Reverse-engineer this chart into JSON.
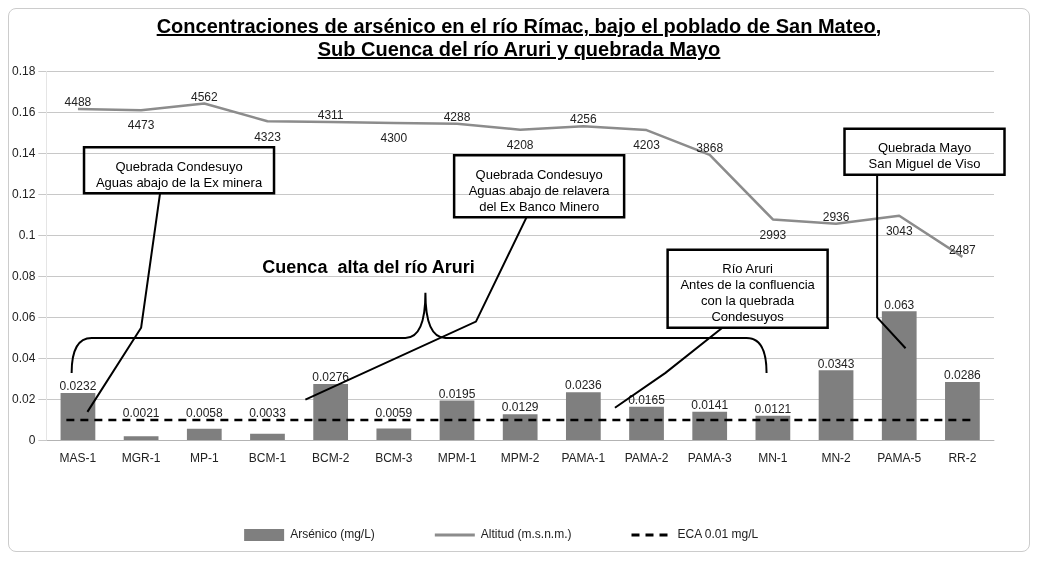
{
  "chart_data": {
    "type": "bar",
    "title": "Concentraciones de arsénico en el río Rímac, bajo el poblado de San Mateo, Sub Cuenca del río Aruri y quebrada Mayo",
    "categories": [
      "MAS-1",
      "MGR-1",
      "MP-1",
      "BCM-1",
      "BCM-2",
      "BCM-3",
      "MPM-1",
      "MPM-2",
      "PAMA-1",
      "PAMA-2",
      "PAMA-3",
      "MN-1",
      "MN-2",
      "PAMA-5",
      "RR-2"
    ],
    "series": [
      {
        "name": "Arsénico (mg/L)",
        "color": "#7f7f7f",
        "values": [
          0.0232,
          0.0021,
          0.0058,
          0.0033,
          0.0276,
          0.0059,
          0.0195,
          0.0129,
          0.0236,
          0.0165,
          0.0141,
          0.0121,
          0.0343,
          0.063,
          0.0286
        ]
      },
      {
        "name": "Altitud (m.s.n.m.)",
        "type": "line",
        "axis": "y2",
        "color": "#8c8c8c",
        "values": [
          4488,
          4473,
          4562,
          4323,
          4311,
          4300,
          4288,
          4208,
          4256,
          4203,
          3868,
          2993,
          2936,
          3043,
          2487
        ]
      }
    ],
    "data_labels": true,
    "ref_lines": [
      {
        "axis": "y",
        "value": 0.01,
        "label": "ECA 0.01 mg/L",
        "color": "#000000",
        "line_style": "dashed"
      }
    ],
    "ylim": [
      0,
      0.18
    ],
    "yticks": [
      0,
      0.02,
      0.04,
      0.06,
      0.08,
      0.1,
      0.12,
      0.14,
      0.16,
      0.18
    ],
    "grid": "y",
    "legend": "bottom",
    "annotations": [
      "Quebrada Condesuyo\nAguas abajo de la Ex minera",
      "Quebrada Condesuyo\nAguas abajo de relavera\ndel Ex Banco Minero",
      "Río Aruri\nAntes de la confluencia\ncon la quebrada\nCondesuyos",
      "Quebrada Mayo\nSan Miguel de Viso",
      "Cuenca  alta del río Aruri"
    ]
  }
}
